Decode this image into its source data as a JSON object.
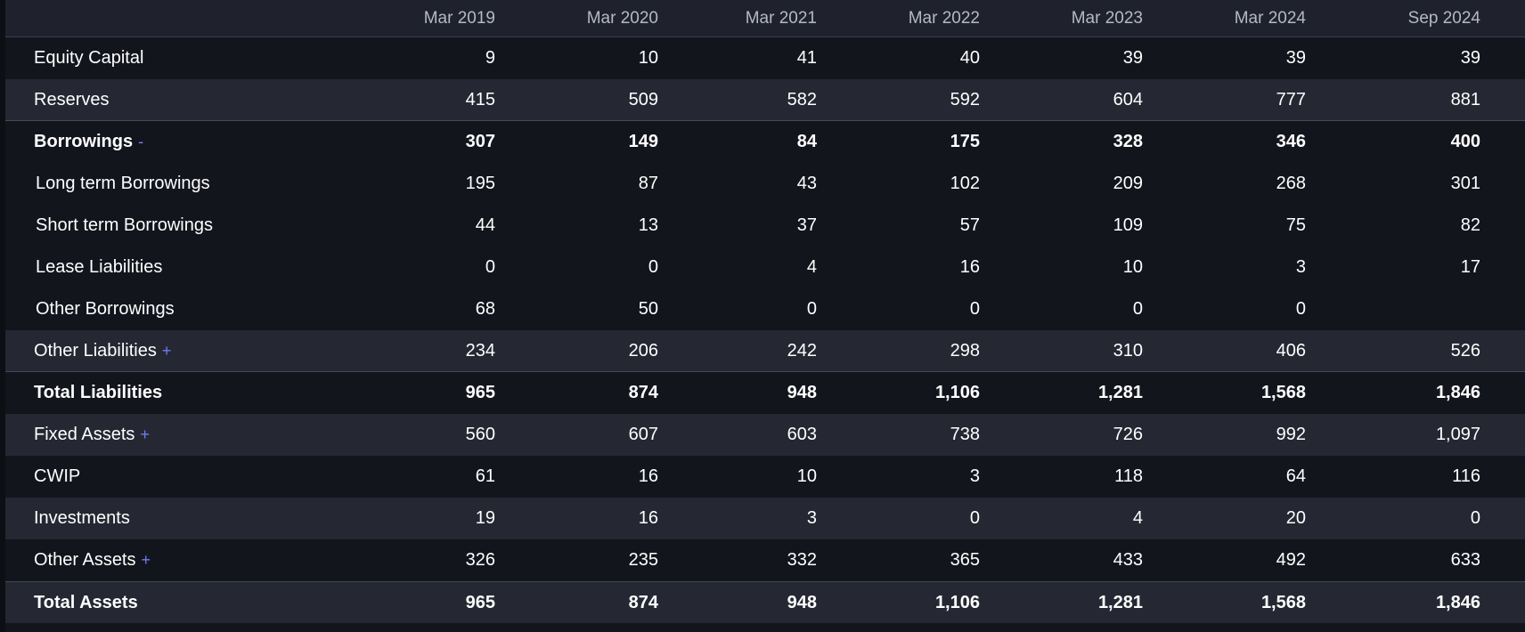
{
  "columns": [
    "Mar 2019",
    "Mar 2020",
    "Mar 2021",
    "Mar 2022",
    "Mar 2023",
    "Mar 2024",
    "Sep 2024"
  ],
  "rows": [
    {
      "label": "Equity Capital",
      "toggle": "",
      "values": [
        "9",
        "10",
        "41",
        "40",
        "39",
        "39",
        "39"
      ]
    },
    {
      "label": "Reserves",
      "toggle": "",
      "values": [
        "415",
        "509",
        "582",
        "592",
        "604",
        "777",
        "881"
      ]
    },
    {
      "label": "Borrowings",
      "toggle": "-",
      "values": [
        "307",
        "149",
        "84",
        "175",
        "328",
        "346",
        "400"
      ]
    },
    {
      "label": "Long term Borrowings",
      "toggle": "",
      "values": [
        "195",
        "87",
        "43",
        "102",
        "209",
        "268",
        "301"
      ]
    },
    {
      "label": "Short term Borrowings",
      "toggle": "",
      "values": [
        "44",
        "13",
        "37",
        "57",
        "109",
        "75",
        "82"
      ]
    },
    {
      "label": "Lease Liabilities",
      "toggle": "",
      "values": [
        "0",
        "0",
        "4",
        "16",
        "10",
        "3",
        "17"
      ]
    },
    {
      "label": "Other Borrowings",
      "toggle": "",
      "values": [
        "68",
        "50",
        "0",
        "0",
        "0",
        "0",
        ""
      ]
    },
    {
      "label": "Other Liabilities",
      "toggle": "+",
      "values": [
        "234",
        "206",
        "242",
        "298",
        "310",
        "406",
        "526"
      ]
    },
    {
      "label": "Total Liabilities",
      "toggle": "",
      "values": [
        "965",
        "874",
        "948",
        "1,106",
        "1,281",
        "1,568",
        "1,846"
      ]
    },
    {
      "label": "Fixed Assets",
      "toggle": "+",
      "values": [
        "560",
        "607",
        "603",
        "738",
        "726",
        "992",
        "1,097"
      ]
    },
    {
      "label": "CWIP",
      "toggle": "",
      "values": [
        "61",
        "16",
        "10",
        "3",
        "118",
        "64",
        "116"
      ]
    },
    {
      "label": "Investments",
      "toggle": "",
      "values": [
        "19",
        "16",
        "3",
        "0",
        "4",
        "20",
        "0"
      ]
    },
    {
      "label": "Other Assets",
      "toggle": "+",
      "values": [
        "326",
        "235",
        "332",
        "365",
        "433",
        "492",
        "633"
      ]
    },
    {
      "label": "Total Assets",
      "toggle": "",
      "values": [
        "965",
        "874",
        "948",
        "1,106",
        "1,281",
        "1,568",
        "1,846"
      ]
    }
  ]
}
